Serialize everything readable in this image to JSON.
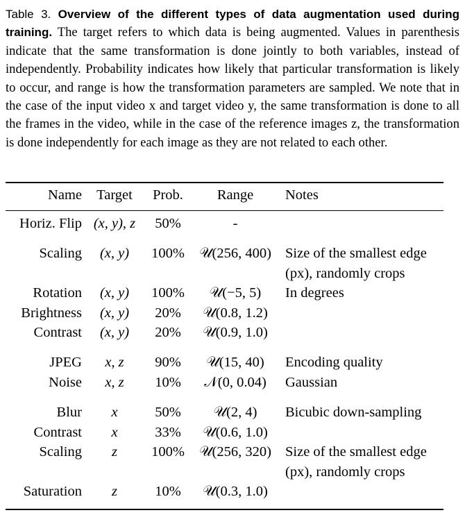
{
  "caption": {
    "label": "Table 3.",
    "title": "Overview of the different types of data augmentation used during training.",
    "body": "The target refers to which data is being augmented. Val­ues in parenthesis indicate that the same transformation is done jointly to both variables, instead of independently. Probability indicates how likely that particular transformation is likely to occur, and range is how the trans­formation parameters are sampled. We note that in the case of the input video x and target video y, the same transformation is done to all the frames in the video, while in the case of the reference images z, the transformation is done independently for each image as they are not related to each other."
  },
  "table": {
    "headers": [
      "Name",
      "Target",
      "Prob.",
      "Range",
      "Notes"
    ],
    "rows": [
      {
        "name": "Horiz. Flip",
        "target": "(x, y), z",
        "prob": "50%",
        "range": "-",
        "notes": []
      },
      {
        "name": "Scaling",
        "target": "(x, y)",
        "prob": "100%",
        "range": "𝒰(256, 400)",
        "notes": [
          "Size of the smallest edge",
          "(px), randomly crops"
        ]
      },
      {
        "name": "Rotation",
        "target": "(x, y)",
        "prob": "100%",
        "range": "𝒰(−5, 5)",
        "notes": [
          "In degrees"
        ]
      },
      {
        "name": "Brightness",
        "target": "(x, y)",
        "prob": "20%",
        "range": "𝒰(0.8, 1.2)",
        "notes": []
      },
      {
        "name": "Contrast",
        "target": "(x, y)",
        "prob": "20%",
        "range": "𝒰(0.9, 1.0)",
        "notes": []
      },
      {
        "name": "JPEG",
        "target": "x, z",
        "prob": "90%",
        "range": "𝒰(15, 40)",
        "notes": [
          "Encoding quality"
        ]
      },
      {
        "name": "Noise",
        "target": "x, z",
        "prob": "10%",
        "range": "𝒩(0, 0.04)",
        "notes": [
          "Gaussian"
        ]
      },
      {
        "name": "Blur",
        "target": "x",
        "prob": "50%",
        "range": "𝒰(2, 4)",
        "notes": [
          "Bicubic down-sampling"
        ]
      },
      {
        "name": "Contrast",
        "target": "x",
        "prob": "33%",
        "range": "𝒰(0.6, 1.0)",
        "notes": []
      },
      {
        "name": "Scaling",
        "target": "z",
        "prob": "100%",
        "range": "𝒰(256, 320)",
        "notes": [
          "Size of the smallest edge",
          "(px), randomly crops"
        ]
      },
      {
        "name": "Saturation",
        "target": "z",
        "prob": "10%",
        "range": "𝒰(0.3, 1.0)",
        "notes": []
      }
    ]
  }
}
